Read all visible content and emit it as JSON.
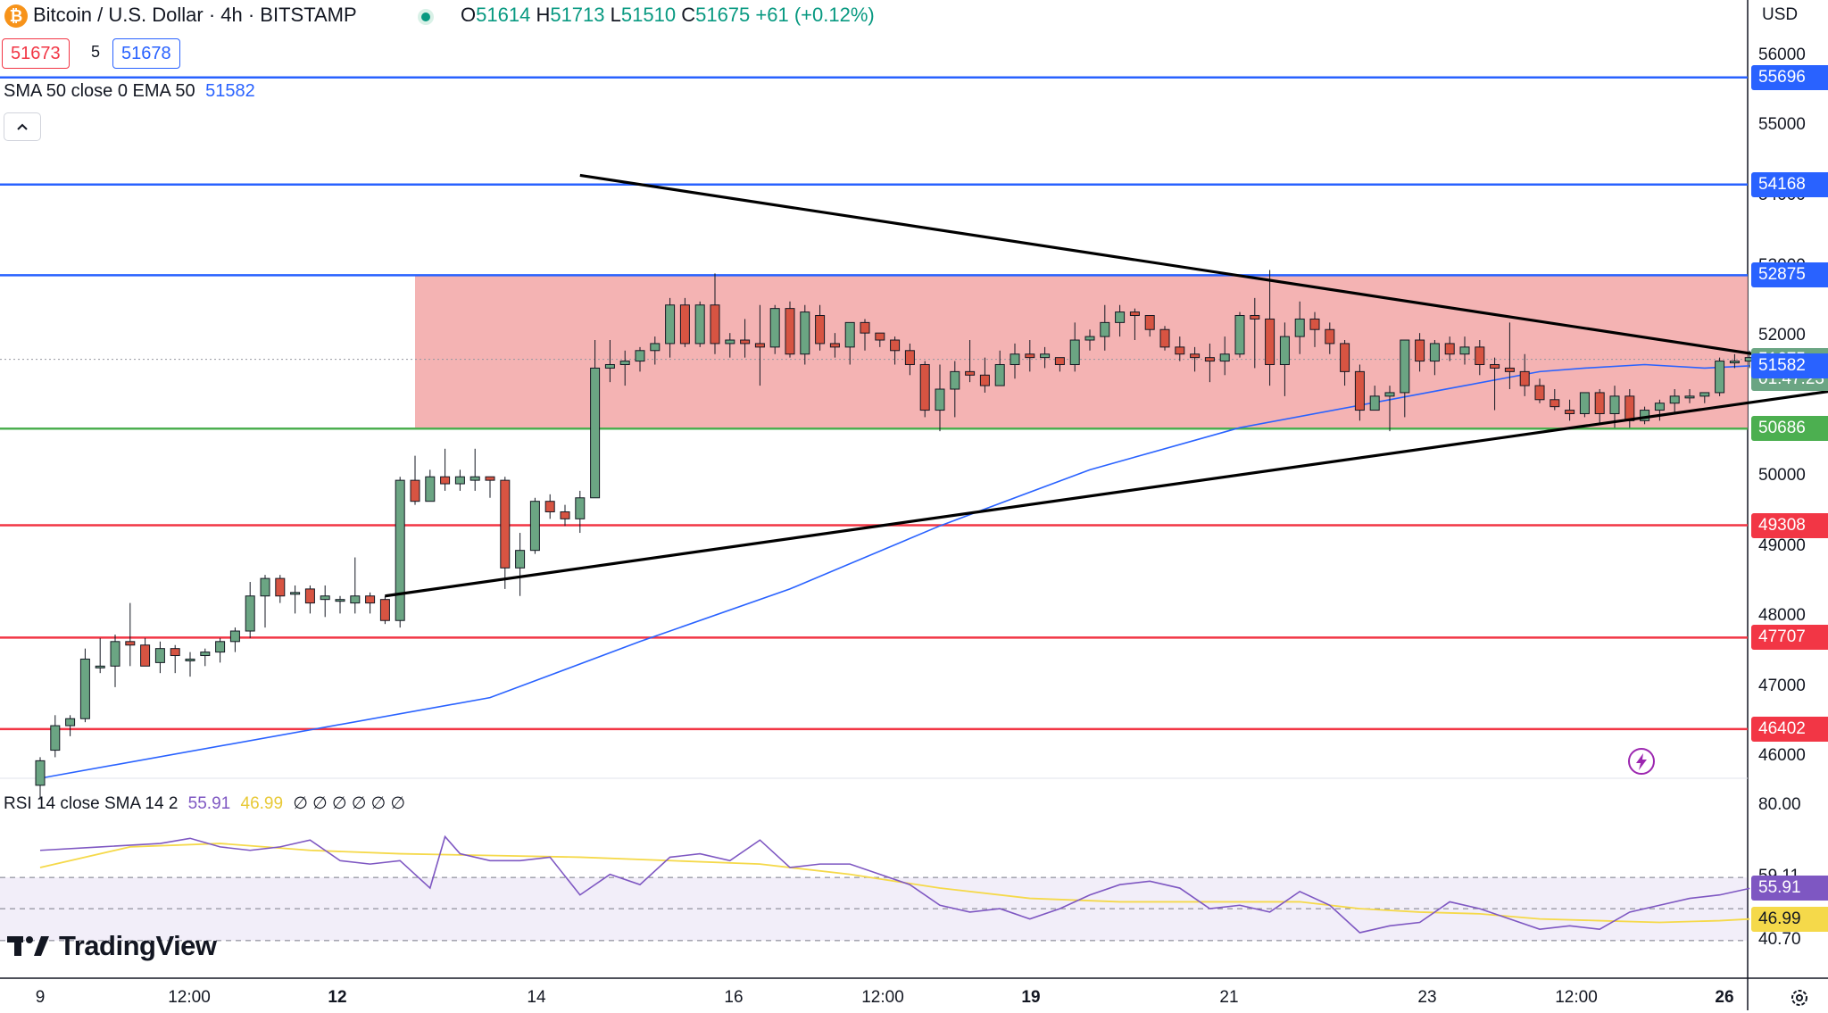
{
  "header": {
    "symbol_title": "Bitcoin / U.S. Dollar · 4h · BITSTAMP",
    "ohlc": [
      {
        "label": "O",
        "value": "51614"
      },
      {
        "label": "H",
        "value": "51713"
      },
      {
        "label": "L",
        "value": "51510"
      },
      {
        "label": "C",
        "value": "51675"
      }
    ],
    "change": "+61 (+0.12%)",
    "bid": "51673",
    "spread": "5",
    "ask": "51678",
    "indicator_label": "SMA 50 close 0 EMA 50",
    "indicator_value": "51582",
    "currency": "USD"
  },
  "rsi_header": {
    "label": "RSI 14 close SMA 14 2",
    "rsi_value": "55.91",
    "sma_value": "46.99",
    "hidden_values": "∅ ∅ ∅ ∅ ∅ ∅"
  },
  "watermark": "TradingView",
  "colors": {
    "up": "#6ba583",
    "down": "#d75442",
    "sma": "#2962ff",
    "resistance": "#2962ff",
    "support": "#f23645",
    "range_bottom": "#4caf50",
    "range_fill": "#f2a6a6",
    "rsi": "#7e57c2",
    "rsi_sma": "#f5d94a"
  },
  "chart_data": [
    {
      "type": "candlestick",
      "title": "Bitcoin / U.S. Dollar · 4h · BITSTAMP",
      "ylim": [
        45700,
        56800
      ],
      "y_ticks": [
        56000,
        55000,
        54000,
        53000,
        52000,
        50000,
        49000,
        48000,
        47000,
        46000
      ],
      "x_ticks": [
        "9",
        "12:00",
        "12",
        "14",
        "16",
        "12:00",
        "19",
        "21",
        "23",
        "12:00",
        "26"
      ],
      "x_ticks_bold": [
        "12",
        "19",
        "26"
      ],
      "candles": [
        [
          45600,
          46000,
          45400,
          45950
        ],
        [
          46100,
          46600,
          46000,
          46450
        ],
        [
          46450,
          46600,
          46300,
          46550
        ],
        [
          46550,
          47550,
          46500,
          47400
        ],
        [
          47300,
          47700,
          47200,
          47300
        ],
        [
          47300,
          47750,
          47000,
          47650
        ],
        [
          47650,
          48200,
          47300,
          47600
        ],
        [
          47600,
          47700,
          47300,
          47300
        ],
        [
          47350,
          47650,
          47200,
          47550
        ],
        [
          47550,
          47600,
          47200,
          47450
        ],
        [
          47400,
          47500,
          47150,
          47400
        ],
        [
          47450,
          47550,
          47300,
          47500
        ],
        [
          47500,
          47700,
          47350,
          47650
        ],
        [
          47650,
          47850,
          47500,
          47800
        ],
        [
          47800,
          48500,
          47700,
          48300
        ],
        [
          48300,
          48600,
          47850,
          48550
        ],
        [
          48550,
          48600,
          48200,
          48300
        ],
        [
          48350,
          48450,
          48050,
          48350
        ],
        [
          48400,
          48450,
          48050,
          48200
        ],
        [
          48250,
          48450,
          48000,
          48300
        ],
        [
          48250,
          48300,
          48050,
          48250
        ],
        [
          48200,
          48850,
          48050,
          48300
        ],
        [
          48300,
          48350,
          48050,
          48200
        ],
        [
          48250,
          48300,
          47900,
          47950
        ],
        [
          47950,
          50000,
          47850,
          49950
        ],
        [
          49950,
          50300,
          49600,
          49650
        ],
        [
          49650,
          50100,
          49650,
          50000
        ],
        [
          50000,
          50400,
          49800,
          49900
        ],
        [
          49900,
          50100,
          49800,
          50000
        ],
        [
          49950,
          50400,
          49800,
          50000
        ],
        [
          50000,
          50000,
          49700,
          49950
        ],
        [
          49950,
          50000,
          48400,
          48700
        ],
        [
          48700,
          49200,
          48300,
          48950
        ],
        [
          48950,
          49700,
          48900,
          49650
        ],
        [
          49650,
          49750,
          49400,
          49500
        ],
        [
          49500,
          49600,
          49300,
          49400
        ],
        [
          49400,
          49800,
          49200,
          49700
        ],
        [
          49700,
          51950,
          49700,
          51550
        ],
        [
          51550,
          51950,
          51350,
          51600
        ],
        [
          51600,
          51800,
          51300,
          51650
        ],
        [
          51650,
          51850,
          51500,
          51800
        ],
        [
          51800,
          52000,
          51600,
          51900
        ],
        [
          51900,
          52550,
          51700,
          52450
        ],
        [
          52450,
          52550,
          51850,
          51900
        ],
        [
          51900,
          52500,
          51850,
          52450
        ],
        [
          52450,
          52900,
          51750,
          51900
        ],
        [
          51900,
          52050,
          51700,
          51950
        ],
        [
          51950,
          52250,
          51700,
          51900
        ],
        [
          51900,
          52450,
          51300,
          51850
        ],
        [
          51850,
          52450,
          51750,
          52400
        ],
        [
          52400,
          52500,
          51700,
          51750
        ],
        [
          51750,
          52450,
          51600,
          52350
        ],
        [
          52300,
          52450,
          51800,
          51900
        ],
        [
          51900,
          52050,
          51700,
          51850
        ],
        [
          51850,
          52200,
          51600,
          52200
        ],
        [
          52200,
          52250,
          51800,
          52050
        ],
        [
          52050,
          52050,
          51850,
          51950
        ],
        [
          51950,
          52000,
          51600,
          51800
        ],
        [
          51800,
          51900,
          51450,
          51600
        ],
        [
          51600,
          51650,
          50850,
          50950
        ],
        [
          50950,
          51600,
          50650,
          51250
        ],
        [
          51250,
          51650,
          50850,
          51500
        ],
        [
          51500,
          51950,
          51350,
          51450
        ],
        [
          51450,
          51700,
          51200,
          51300
        ],
        [
          51300,
          51800,
          51300,
          51600
        ],
        [
          51600,
          51900,
          51400,
          51750
        ],
        [
          51750,
          51950,
          51500,
          51700
        ],
        [
          51700,
          51850,
          51550,
          51750
        ],
        [
          51700,
          51700,
          51500,
          51600
        ],
        [
          51600,
          52200,
          51500,
          51950
        ],
        [
          51950,
          52100,
          51800,
          52000
        ],
        [
          52000,
          52450,
          51800,
          52200
        ],
        [
          52200,
          52450,
          52000,
          52350
        ],
        [
          52350,
          52400,
          51950,
          52300
        ],
        [
          52300,
          52300,
          52000,
          52100
        ],
        [
          52100,
          52150,
          51800,
          51850
        ],
        [
          51850,
          52000,
          51650,
          51750
        ],
        [
          51750,
          51850,
          51500,
          51700
        ],
        [
          51700,
          51900,
          51350,
          51650
        ],
        [
          51650,
          52000,
          51450,
          51750
        ],
        [
          51750,
          52350,
          51700,
          52300
        ],
        [
          52300,
          52550,
          51550,
          52250
        ],
        [
          52250,
          52950,
          51300,
          51600
        ],
        [
          51600,
          52200,
          51150,
          52000
        ],
        [
          52000,
          52500,
          51750,
          52250
        ],
        [
          52250,
          52350,
          51850,
          52100
        ],
        [
          52100,
          52200,
          51750,
          51900
        ],
        [
          51900,
          51950,
          51300,
          51500
        ],
        [
          51500,
          51600,
          50800,
          50950
        ],
        [
          50950,
          51300,
          50950,
          51150
        ],
        [
          51150,
          51300,
          50650,
          51200
        ],
        [
          51200,
          51950,
          50850,
          51950
        ],
        [
          51950,
          52050,
          51500,
          51650
        ],
        [
          51650,
          51950,
          51450,
          51900
        ],
        [
          51900,
          52000,
          51650,
          51750
        ],
        [
          51750,
          52000,
          51600,
          51850
        ],
        [
          51850,
          51950,
          51450,
          51600
        ],
        [
          51600,
          51700,
          50950,
          51550
        ],
        [
          51550,
          52200,
          51250,
          51500
        ],
        [
          51500,
          51750,
          51150,
          51300
        ],
        [
          51300,
          51400,
          51050,
          51100
        ],
        [
          51100,
          51250,
          50950,
          51000
        ],
        [
          50950,
          51100,
          50800,
          50900
        ],
        [
          50900,
          51200,
          50850,
          51200
        ],
        [
          51200,
          51250,
          50750,
          50900
        ],
        [
          50900,
          51300,
          50700,
          51150
        ],
        [
          51150,
          51250,
          50700,
          50800
        ],
        [
          50800,
          51000,
          50750,
          50950
        ],
        [
          50950,
          51100,
          50800,
          51050
        ],
        [
          51050,
          51250,
          50900,
          51150
        ],
        [
          51150,
          51250,
          51050,
          51150
        ],
        [
          51150,
          51200,
          51050,
          51200
        ],
        [
          51200,
          51700,
          51150,
          51650
        ],
        [
          51650,
          51750,
          51550,
          51650
        ],
        [
          51650,
          51800,
          51550,
          51700
        ],
        [
          51700,
          51750,
          51500,
          51680
        ],
        [
          51614,
          51713,
          51510,
          51675
        ]
      ],
      "sma50": [
        [
          0,
          45700
        ],
        [
          30,
          46850
        ],
        [
          40,
          47650
        ],
        [
          50,
          48400
        ],
        [
          60,
          49300
        ],
        [
          70,
          50100
        ],
        [
          80,
          50700
        ],
        [
          90,
          51100
        ],
        [
          95,
          51300
        ],
        [
          100,
          51500
        ],
        [
          103,
          51550
        ],
        [
          107,
          51600
        ],
        [
          111,
          51550
        ],
        [
          114,
          51582
        ]
      ],
      "range_zone": {
        "from_index": 25,
        "top": 52875,
        "bottom": 50686
      },
      "horizontal_levels": [
        {
          "value": 55696,
          "kind": "resistance"
        },
        {
          "value": 54168,
          "kind": "resistance"
        },
        {
          "value": 52875,
          "kind": "resistance"
        },
        {
          "value": 50686,
          "kind": "range_bottom"
        },
        {
          "value": 49308,
          "kind": "support"
        },
        {
          "value": 47707,
          "kind": "support"
        },
        {
          "value": 46402,
          "kind": "support"
        }
      ],
      "trendlines": [
        {
          "name": "upper",
          "start": [
            36,
            54300
          ],
          "end": [
            122,
            51500
          ]
        },
        {
          "name": "lower",
          "start": [
            23,
            48300
          ],
          "end": [
            122,
            51300
          ]
        }
      ],
      "last_price": 51675,
      "countdown": "01:47:23",
      "sma_last": 51582
    },
    {
      "type": "line",
      "title": "RSI 14 close SMA 14 2",
      "ylim": [
        30,
        88
      ],
      "y_ticks": [
        80.0,
        59.11,
        40.7
      ],
      "bands": {
        "upper": 59.11,
        "middle": 50.0,
        "lower": 40.7
      },
      "rsi": [
        [
          0,
          67
        ],
        [
          4,
          68
        ],
        [
          8,
          69
        ],
        [
          10,
          70.5
        ],
        [
          12,
          68
        ],
        [
          14,
          67
        ],
        [
          16,
          68
        ],
        [
          18,
          70
        ],
        [
          20,
          64
        ],
        [
          22,
          63
        ],
        [
          24,
          64
        ],
        [
          26,
          56
        ],
        [
          27,
          71
        ],
        [
          28,
          66
        ],
        [
          30,
          64
        ],
        [
          32,
          64
        ],
        [
          34,
          65
        ],
        [
          36,
          54
        ],
        [
          38,
          60
        ],
        [
          40,
          57
        ],
        [
          42,
          65
        ],
        [
          44,
          66
        ],
        [
          46,
          64
        ],
        [
          48,
          70
        ],
        [
          50,
          62
        ],
        [
          52,
          63
        ],
        [
          54,
          63
        ],
        [
          56,
          60
        ],
        [
          58,
          57
        ],
        [
          60,
          51
        ],
        [
          62,
          49
        ],
        [
          64,
          50
        ],
        [
          66,
          47
        ],
        [
          68,
          50
        ],
        [
          70,
          54
        ],
        [
          72,
          57
        ],
        [
          74,
          58
        ],
        [
          76,
          56
        ],
        [
          78,
          50
        ],
        [
          80,
          51
        ],
        [
          82,
          49
        ],
        [
          84,
          55
        ],
        [
          86,
          51
        ],
        [
          88,
          43
        ],
        [
          90,
          45
        ],
        [
          92,
          46
        ],
        [
          94,
          52
        ],
        [
          96,
          50
        ],
        [
          98,
          47
        ],
        [
          100,
          44
        ],
        [
          102,
          45
        ],
        [
          104,
          44
        ],
        [
          106,
          49
        ],
        [
          108,
          51
        ],
        [
          110,
          53
        ],
        [
          112,
          54
        ],
        [
          114,
          55.91
        ]
      ],
      "rsi_sma": [
        [
          0,
          62
        ],
        [
          6,
          68
        ],
        [
          12,
          69
        ],
        [
          18,
          67
        ],
        [
          24,
          66
        ],
        [
          30,
          65.5
        ],
        [
          36,
          65
        ],
        [
          42,
          64
        ],
        [
          48,
          63
        ],
        [
          54,
          60
        ],
        [
          60,
          56
        ],
        [
          66,
          53
        ],
        [
          72,
          52
        ],
        [
          78,
          52
        ],
        [
          84,
          52
        ],
        [
          88,
          50
        ],
        [
          92,
          49
        ],
        [
          96,
          48.5
        ],
        [
          100,
          47
        ],
        [
          104,
          46.5
        ],
        [
          108,
          46
        ],
        [
          112,
          46.5
        ],
        [
          114,
          46.99
        ]
      ]
    }
  ]
}
